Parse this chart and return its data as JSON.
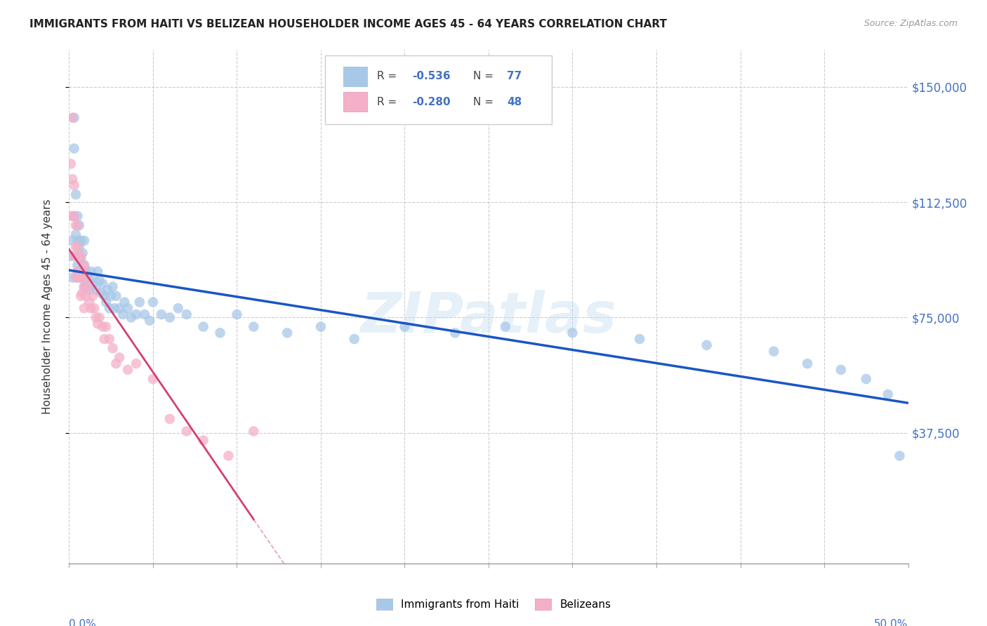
{
  "title": "IMMIGRANTS FROM HAITI VS BELIZEAN HOUSEHOLDER INCOME AGES 45 - 64 YEARS CORRELATION CHART",
  "source": "Source: ZipAtlas.com",
  "ylabel": "Householder Income Ages 45 - 64 years",
  "ytick_labels": [
    "$37,500",
    "$75,000",
    "$112,500",
    "$150,000"
  ],
  "ytick_values": [
    37500,
    75000,
    112500,
    150000
  ],
  "ymax": 162000,
  "ymin": -5000,
  "xmin": 0.0,
  "xmax": 0.5,
  "watermark": "ZIPatlas",
  "haiti_color": "#a8c8e8",
  "belize_color": "#f4b0c8",
  "haiti_line_color": "#1a56c4",
  "belize_line_color": "#d44070",
  "haiti_x": [
    0.001,
    0.002,
    0.002,
    0.003,
    0.003,
    0.003,
    0.004,
    0.004,
    0.004,
    0.005,
    0.005,
    0.005,
    0.005,
    0.006,
    0.006,
    0.006,
    0.007,
    0.007,
    0.007,
    0.008,
    0.008,
    0.009,
    0.009,
    0.009,
    0.01,
    0.01,
    0.011,
    0.012,
    0.013,
    0.014,
    0.015,
    0.016,
    0.017,
    0.018,
    0.019,
    0.02,
    0.021,
    0.022,
    0.023,
    0.024,
    0.025,
    0.026,
    0.027,
    0.028,
    0.03,
    0.032,
    0.033,
    0.035,
    0.037,
    0.04,
    0.042,
    0.045,
    0.048,
    0.05,
    0.055,
    0.06,
    0.065,
    0.07,
    0.08,
    0.09,
    0.1,
    0.11,
    0.13,
    0.15,
    0.17,
    0.2,
    0.23,
    0.26,
    0.3,
    0.34,
    0.38,
    0.42,
    0.44,
    0.46,
    0.475,
    0.488,
    0.495
  ],
  "haiti_y": [
    95000,
    100000,
    88000,
    140000,
    130000,
    108000,
    115000,
    102000,
    95000,
    108000,
    100000,
    92000,
    88000,
    105000,
    98000,
    90000,
    100000,
    94000,
    88000,
    96000,
    88000,
    100000,
    92000,
    85000,
    90000,
    85000,
    88000,
    84000,
    90000,
    86000,
    88000,
    84000,
    90000,
    87000,
    83000,
    86000,
    82000,
    80000,
    84000,
    78000,
    82000,
    85000,
    78000,
    82000,
    78000,
    76000,
    80000,
    78000,
    75000,
    76000,
    80000,
    76000,
    74000,
    80000,
    76000,
    75000,
    78000,
    76000,
    72000,
    70000,
    76000,
    72000,
    70000,
    72000,
    68000,
    72000,
    70000,
    72000,
    70000,
    68000,
    66000,
    64000,
    60000,
    58000,
    55000,
    50000,
    30000
  ],
  "belize_x": [
    0.001,
    0.001,
    0.002,
    0.002,
    0.003,
    0.003,
    0.003,
    0.004,
    0.004,
    0.004,
    0.005,
    0.005,
    0.005,
    0.006,
    0.006,
    0.007,
    0.007,
    0.007,
    0.008,
    0.008,
    0.009,
    0.009,
    0.009,
    0.01,
    0.01,
    0.011,
    0.012,
    0.013,
    0.014,
    0.015,
    0.016,
    0.017,
    0.018,
    0.02,
    0.021,
    0.022,
    0.024,
    0.026,
    0.028,
    0.03,
    0.035,
    0.04,
    0.05,
    0.06,
    0.07,
    0.08,
    0.095,
    0.11
  ],
  "belize_y": [
    125000,
    108000,
    140000,
    120000,
    118000,
    108000,
    95000,
    105000,
    98000,
    88000,
    98000,
    105000,
    90000,
    95000,
    88000,
    95000,
    88000,
    82000,
    90000,
    83000,
    92000,
    85000,
    78000,
    88000,
    82000,
    85000,
    80000,
    78000,
    82000,
    78000,
    75000,
    73000,
    75000,
    72000,
    68000,
    72000,
    68000,
    65000,
    60000,
    62000,
    58000,
    60000,
    55000,
    42000,
    38000,
    35000,
    30000,
    38000
  ]
}
